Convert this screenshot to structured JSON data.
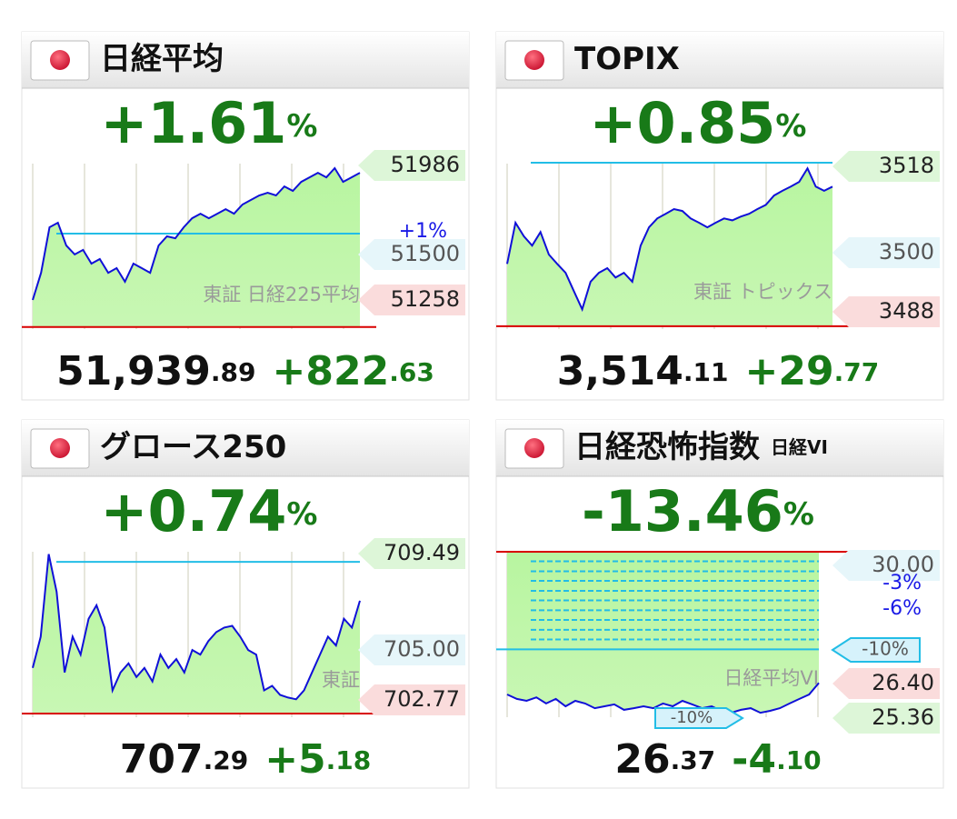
{
  "panels": [
    {
      "title": "日経平均",
      "change_pct": "+1.61",
      "pct_sign": "%",
      "price": {
        "int": "51,939",
        "dec": ".89"
      },
      "change": {
        "int": "+822",
        "dec": ".63"
      },
      "watermark": "東証 日経225平均",
      "ylim": [
        51106,
        52011
      ],
      "prev_close": 51117,
      "ref_lines": [
        {
          "value": 51628,
          "style": "solid"
        }
      ],
      "tags": [
        {
          "text": "51986",
          "kind": "high"
        },
        {
          "text": "+1%",
          "kind": "pct"
        },
        {
          "text": "51500",
          "kind": "mid"
        },
        {
          "text": "51258",
          "kind": "low"
        }
      ],
      "values": [
        51265,
        51414,
        51663,
        51688,
        51563,
        51514,
        51539,
        51464,
        51489,
        51414,
        51439,
        51365,
        51464,
        51439,
        51414,
        51563,
        51613,
        51603,
        51663,
        51712,
        51737,
        51712,
        51737,
        51762,
        51737,
        51787,
        51812,
        51837,
        51852,
        51837,
        51886,
        51862,
        51911,
        51936,
        51961,
        51936,
        51986,
        51911,
        51936,
        51961
      ]
    },
    {
      "title": "TOPIX",
      "change_pct": "+0.85",
      "pct_sign": "%",
      "price": {
        "int": "3,514",
        "dec": ".11"
      },
      "change": {
        "int": "+29",
        "dec": ".77"
      },
      "watermark": "東証 トピックス",
      "ylim": [
        3483.7,
        3519
      ],
      "prev_close": 3484.3,
      "ref_lines": [
        {
          "value": 3519.2,
          "style": "solid"
        }
      ],
      "tags": [
        {
          "text": "3518",
          "kind": "high"
        },
        {
          "text": "3500",
          "kind": "mid"
        },
        {
          "text": "3488",
          "kind": "low"
        }
      ],
      "values": [
        3497.6,
        3506.4,
        3503.5,
        3501.5,
        3504.4,
        3499.6,
        3497.6,
        3495.7,
        3491.8,
        3487.9,
        3493.8,
        3495.7,
        3496.7,
        3494.7,
        3495.7,
        3493.8,
        3501.5,
        3505.4,
        3507.3,
        3508.3,
        3509.3,
        3508.9,
        3507.3,
        3506.4,
        3505.4,
        3506.4,
        3507.3,
        3506.9,
        3507.7,
        3508.3,
        3509.3,
        3510.2,
        3512.2,
        3513.2,
        3514.1,
        3515.1,
        3518,
        3514.1,
        3513.2,
        3514.1
      ]
    },
    {
      "title": "グロース250",
      "change_pct": "+0.74",
      "pct_sign": "%",
      "price": {
        "int": "707",
        "dec": ".29"
      },
      "change": {
        "int": "+5",
        "dec": ".18"
      },
      "watermark": "東証",
      "ylim": [
        701.94,
        709.6
      ],
      "prev_close": 702.11,
      "ref_lines": [
        {
          "value": 709.13,
          "style": "solid"
        }
      ],
      "tags": [
        {
          "text": "709.49",
          "kind": "high"
        },
        {
          "text": "705.00",
          "kind": "mid"
        },
        {
          "text": "702.77",
          "kind": "low"
        }
      ],
      "values": [
        704.22,
        705.67,
        709.49,
        707.75,
        704.01,
        705.67,
        704.84,
        706.5,
        707.12,
        706.09,
        703.18,
        704.01,
        704.43,
        703.8,
        704.22,
        703.6,
        704.84,
        704.22,
        704.63,
        704.01,
        705.05,
        704.84,
        705.46,
        705.88,
        706.09,
        706.17,
        705.67,
        705.05,
        704.84,
        703.18,
        703.39,
        702.97,
        702.85,
        702.77,
        703.18,
        704.01,
        704.84,
        705.67,
        705.26,
        706.5,
        706.09,
        707.33
      ]
    },
    {
      "title": "日経恐怖指数",
      "subtitle": "日経VI",
      "change_pct": "-13.46",
      "pct_sign": "%",
      "price": {
        "int": "26",
        "dec": ".37"
      },
      "change": {
        "int": "-4",
        "dec": ".10"
      },
      "watermark": "日経平均VI",
      "ylim": [
        25.3,
        30.47
      ],
      "prev_close": 30.47,
      "fill_above": true,
      "ref_lines": [
        {
          "value": 30.17,
          "style": "dashed"
        },
        {
          "value": 29.86,
          "style": "dashed"
        },
        {
          "value": 29.56,
          "style": "dashed"
        },
        {
          "value": 29.25,
          "style": "dashed"
        },
        {
          "value": 28.95,
          "style": "dashed"
        },
        {
          "value": 28.64,
          "style": "dashed"
        },
        {
          "value": 28.34,
          "style": "dashed"
        },
        {
          "value": 28.03,
          "style": "dashed"
        },
        {
          "value": 27.73,
          "style": "dashed"
        },
        {
          "value": 27.42,
          "style": "full"
        }
      ],
      "tags": [
        {
          "text": "30.00",
          "kind": "mid"
        },
        {
          "text": "-3%",
          "kind": "pct"
        },
        {
          "text": "-6%",
          "kind": "pct"
        },
        {
          "text": "-10%",
          "kind": "box"
        },
        {
          "text": "26.40",
          "kind": "low"
        },
        {
          "text": "25.36",
          "kind": "high"
        },
        {
          "text": "-10%",
          "kind": "box2"
        }
      ],
      "values": [
        26.01,
        25.87,
        25.81,
        25.92,
        25.73,
        25.87,
        25.64,
        25.81,
        25.73,
        25.58,
        25.64,
        25.7,
        25.53,
        25.58,
        25.64,
        25.58,
        25.73,
        25.64,
        25.81,
        25.7,
        25.58,
        25.64,
        25.5,
        25.44,
        25.53,
        25.58,
        25.44,
        25.5,
        25.58,
        25.73,
        25.87,
        26.01,
        26.37
      ]
    }
  ]
}
